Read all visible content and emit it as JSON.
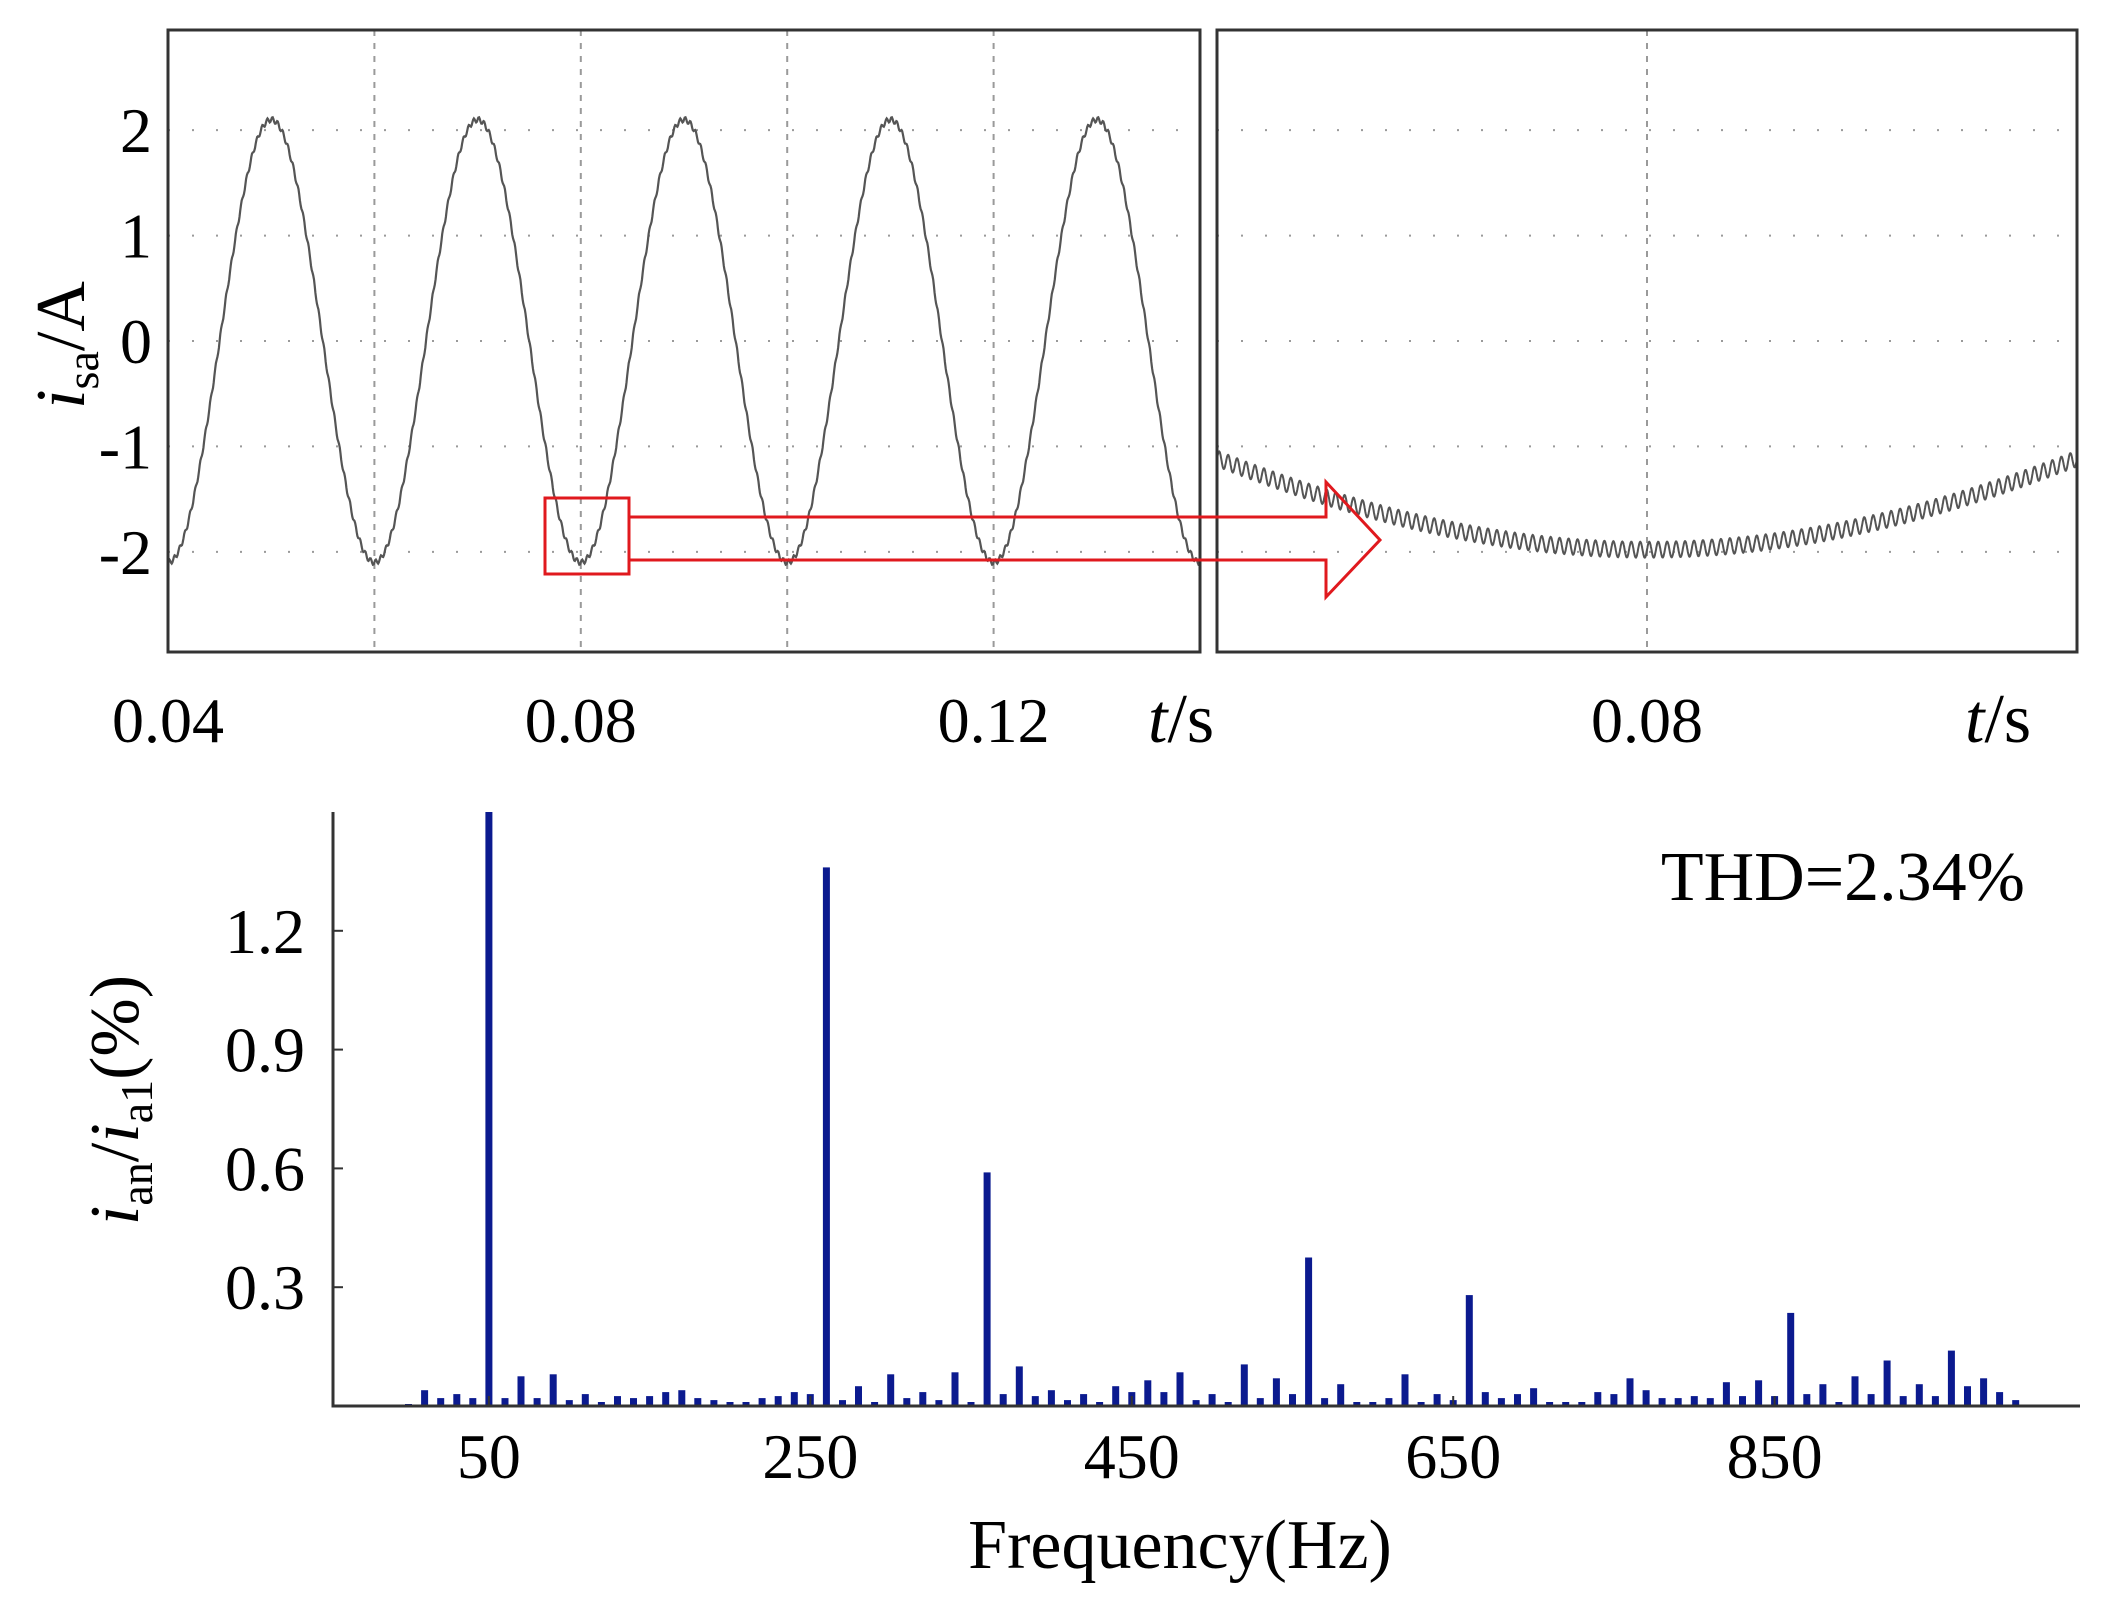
{
  "colors": {
    "waveform": "#555555",
    "grid": "#9a9a9a",
    "zoom_marker": "#e0191e",
    "bars": "#0b1a8f",
    "frame": "#333333"
  },
  "chart_data": [
    {
      "type": "line",
      "panel": "current-waveform",
      "xlim": [
        0.04,
        0.14
      ],
      "ylim": [
        -2.95,
        2.95
      ],
      "x_ticks": [
        0.04,
        0.08,
        0.12
      ],
      "x_tick_labels": [
        "0.04",
        "0.08",
        "0.12"
      ],
      "x_gridlines": [
        0.06,
        0.08,
        0.1,
        0.12
      ],
      "y_ticks": [
        2,
        1,
        0,
        -1,
        -2
      ],
      "y_tick_labels": [
        "2",
        "1",
        "0",
        "-1",
        "-2"
      ],
      "xlabel": {
        "var": "t",
        "unit": "/s"
      },
      "ylabel": {
        "var": "i",
        "sub": "sa",
        "unit": "/A"
      },
      "amplitude": 2.1,
      "frequency_hz": 50,
      "phase": "minimum at t = 0.04",
      "grid": true
    },
    {
      "type": "line",
      "panel": "zoomed-waveform",
      "xlim": [
        0.077,
        0.083
      ],
      "ylim": [
        -2.95,
        2.95
      ],
      "x_ticks": [
        0.08
      ],
      "x_tick_labels": [
        "0.08"
      ],
      "x_gridlines": [
        0.08
      ],
      "y_gridlines": [
        2,
        1,
        0,
        -1,
        -2
      ],
      "xlabel": {
        "var": "t",
        "unit": "/s"
      },
      "grid": true
    },
    {
      "type": "bar",
      "panel": "harmonic-spectrum",
      "annotation": "THD=2.34%",
      "xlabel": "Frequency(Hz)",
      "ylabel": {
        "num_var": "i",
        "num_sub": "an",
        "den_var": "i",
        "den_sub": "a1",
        "unit": "(%)"
      },
      "x_ticks": [
        50,
        250,
        450,
        650,
        850
      ],
      "x_tick_labels": [
        "50",
        "250",
        "450",
        "650",
        "850"
      ],
      "y_ticks": [
        0.3,
        0.6,
        0.9,
        1.2
      ],
      "y_tick_labels": [
        "0.3",
        "0.6",
        "0.9",
        "1.2"
      ],
      "xlim": [
        -47,
        1040
      ],
      "ylim": [
        0,
        1.5
      ],
      "x": [
        0,
        10,
        20,
        30,
        40,
        50,
        60,
        70,
        80,
        90,
        100,
        110,
        120,
        130,
        140,
        150,
        160,
        170,
        180,
        190,
        200,
        210,
        220,
        230,
        240,
        250,
        260,
        270,
        280,
        290,
        300,
        310,
        320,
        330,
        340,
        350,
        360,
        370,
        380,
        390,
        400,
        410,
        420,
        430,
        440,
        450,
        460,
        470,
        480,
        490,
        500,
        510,
        520,
        530,
        540,
        550,
        560,
        570,
        580,
        590,
        600,
        610,
        620,
        630,
        640,
        650,
        660,
        670,
        680,
        690,
        700,
        710,
        720,
        730,
        740,
        750,
        760,
        770,
        780,
        790,
        800,
        810,
        820,
        830,
        840,
        850,
        860,
        870,
        880,
        890,
        900,
        910,
        920,
        930,
        940,
        950,
        960,
        970,
        980,
        990,
        1000
      ],
      "values": [
        0.005,
        0.04,
        0.02,
        0.03,
        0.02,
        1.5,
        0.02,
        0.075,
        0.02,
        0.08,
        0.015,
        0.03,
        0.01,
        0.025,
        0.02,
        0.025,
        0.035,
        0.04,
        0.02,
        0.015,
        0.01,
        0.01,
        0.02,
        0.025,
        0.035,
        0.03,
        1.36,
        0.015,
        0.05,
        0.01,
        0.08,
        0.02,
        0.035,
        0.015,
        0.085,
        0.01,
        0.59,
        0.03,
        0.1,
        0.025,
        0.04,
        0.015,
        0.03,
        0.01,
        0.05,
        0.035,
        0.065,
        0.035,
        0.085,
        0.015,
        0.03,
        0.01,
        0.105,
        0.02,
        0.07,
        0.03,
        0.375,
        0.02,
        0.055,
        0.01,
        0.01,
        0.02,
        0.08,
        0.01,
        0.03,
        0.015,
        0.28,
        0.035,
        0.02,
        0.03,
        0.045,
        0.01,
        0.01,
        0.01,
        0.035,
        0.03,
        0.07,
        0.04,
        0.02,
        0.02,
        0.025,
        0.02,
        0.06,
        0.025,
        0.065,
        0.025,
        0.235,
        0.03,
        0.055,
        0.01,
        0.075,
        0.03,
        0.115,
        0.025,
        0.055,
        0.025,
        0.14,
        0.05,
        0.07,
        0.035,
        0.015
      ],
      "grid": false
    }
  ]
}
